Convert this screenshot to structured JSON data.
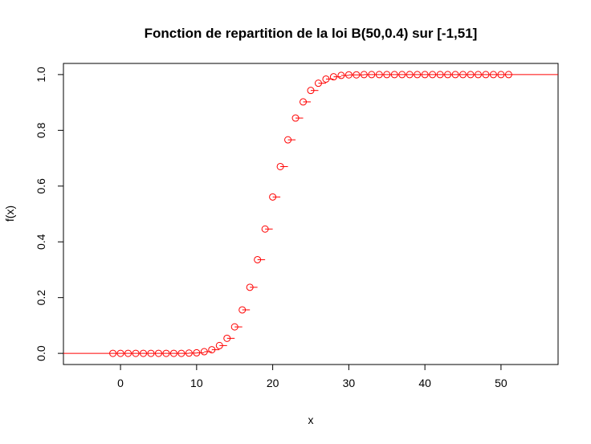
{
  "chart_data": {
    "type": "step",
    "title": "Fonction de repartition de la loi B(50,0.4) sur [-1,51]",
    "xlabel": "x",
    "ylabel": "f(x)",
    "xlim": [
      -7.5,
      57.5
    ],
    "ylim": [
      -0.04,
      1.04
    ],
    "x_ticks": [
      0,
      10,
      20,
      30,
      40,
      50
    ],
    "y_ticks": [
      0.0,
      0.2,
      0.4,
      0.6,
      0.8,
      1.0
    ],
    "x_tick_labels": [
      "0",
      "10",
      "20",
      "30",
      "40",
      "50"
    ],
    "y_tick_labels": [
      "0.0",
      "0.2",
      "0.4",
      "0.6",
      "0.8",
      "1.0"
    ],
    "color": "#ff0000",
    "grid": false,
    "x": [
      -1,
      0,
      1,
      2,
      3,
      4,
      5,
      6,
      7,
      8,
      9,
      10,
      11,
      12,
      13,
      14,
      15,
      16,
      17,
      18,
      19,
      20,
      21,
      22,
      23,
      24,
      25,
      26,
      27,
      28,
      29,
      30,
      31,
      32,
      33,
      34,
      35,
      36,
      37,
      38,
      39,
      40,
      41,
      42,
      43,
      44,
      45,
      46,
      47,
      48,
      49,
      50,
      51
    ],
    "y": [
      0,
      0,
      0,
      0,
      0,
      0,
      0,
      0,
      0,
      0,
      0.001,
      0.002,
      0.006,
      0.013,
      0.028,
      0.054,
      0.095,
      0.156,
      0.237,
      0.336,
      0.446,
      0.561,
      0.67,
      0.766,
      0.844,
      0.902,
      0.943,
      0.969,
      0.984,
      0.992,
      0.997,
      0.999,
      0.999,
      1,
      1,
      1,
      1,
      1,
      1,
      1,
      1,
      1,
      1,
      1,
      1,
      1,
      1,
      1,
      1,
      1,
      1,
      1,
      1
    ]
  }
}
